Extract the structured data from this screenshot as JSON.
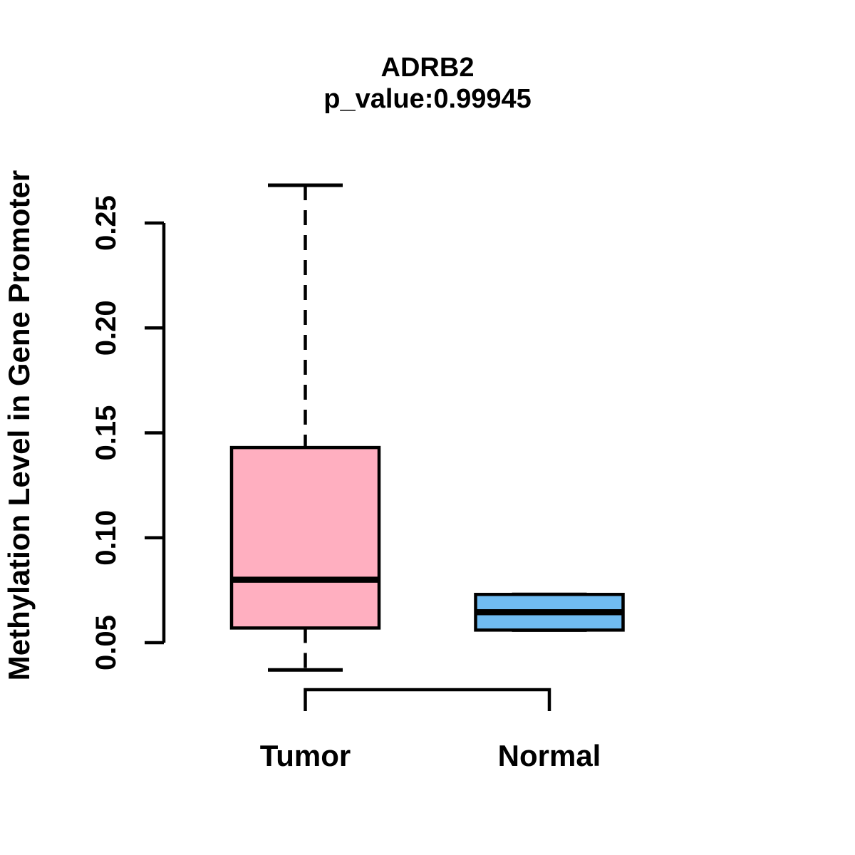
{
  "figure": {
    "title": "ADRB2",
    "subtitle": "p_value:0.99945",
    "ylabel": "Methylation Level in Gene Promoter",
    "background_color": "#FFFFFF",
    "ink_color": "#000000"
  },
  "chart_data": {
    "type": "boxplot",
    "title": "ADRB2",
    "subtitle": "p_value:0.99945",
    "xlabel": "",
    "ylabel": "Methylation Level in Gene Promoter",
    "categories": [
      "Tumor",
      "Normal"
    ],
    "series": [
      {
        "name": "Tumor",
        "whisker_low": 0.037,
        "q1": 0.057,
        "median": 0.08,
        "q3": 0.143,
        "whisker_high": 0.268,
        "fill_color": "#FFAFC0"
      },
      {
        "name": "Normal",
        "whisker_low": 0.056,
        "q1": 0.056,
        "median": 0.0645,
        "q3": 0.073,
        "whisker_high": 0.073,
        "fill_color": "#70BCF2"
      }
    ],
    "ytick_labels": [
      "0.05",
      "0.10",
      "0.15",
      "0.20",
      "0.25"
    ],
    "ytick_values": [
      0.05,
      0.1,
      0.15,
      0.2,
      0.25
    ],
    "ylim": [
      0.037,
      0.268
    ],
    "grid": false,
    "legend": false,
    "whisker_line_style": "dashed",
    "box_border_color": "#000000",
    "comparison_bracket": {
      "between": [
        "Tumor",
        "Normal"
      ]
    }
  }
}
